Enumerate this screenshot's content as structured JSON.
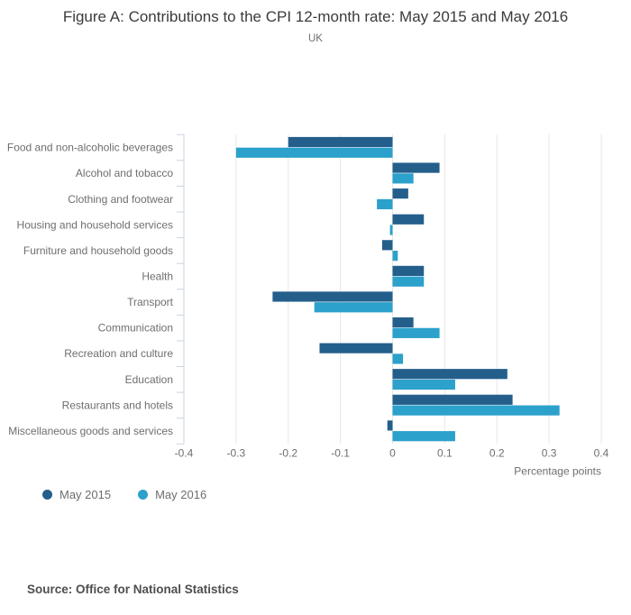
{
  "title": "Figure A: Contributions to the CPI 12-month rate: May 2015 and May 2016",
  "subtitle": "UK",
  "source": "Source: Office for National Statistics",
  "colors": {
    "series_2015": "#245F8C",
    "series_2016": "#2BA1CB",
    "gridline": "#e7e7e7",
    "axis": "#c9d3e2",
    "text_muted": "#6e6e6e",
    "title": "#3b3b3b",
    "source_text": "#4e4e4e"
  },
  "chart_data": {
    "type": "bar",
    "orientation": "horizontal",
    "title": "Figure A: Contributions to the CPI 12-month rate: May 2015 and May 2016",
    "subtitle": "UK",
    "categories": [
      "Food and non-alcoholic beverages",
      "Alcohol and tobacco",
      "Clothing and footwear",
      "Housing and household services",
      "Furniture and household goods",
      "Health",
      "Transport",
      "Communication",
      "Recreation and culture",
      "Education",
      "Restaurants and hotels",
      "Miscellaneous goods and services"
    ],
    "series": [
      {
        "name": "May 2015",
        "color": "#245F8C",
        "values": [
          -0.2,
          0.09,
          0.03,
          0.06,
          -0.02,
          0.06,
          -0.23,
          0.04,
          -0.14,
          0.22,
          0.23,
          -0.01
        ]
      },
      {
        "name": "May 2016",
        "color": "#2BA1CB",
        "values": [
          -0.3,
          0.04,
          -0.03,
          -0.005,
          0.01,
          0.06,
          -0.15,
          0.09,
          0.02,
          0.12,
          0.32,
          0.12
        ]
      }
    ],
    "xlabel": "Percentage points",
    "xlim": [
      -0.4,
      0.4
    ],
    "xticks": [
      {
        "value": -0.4,
        "label": "-0.4"
      },
      {
        "value": -0.3,
        "label": "-0.3"
      },
      {
        "value": -0.2,
        "label": "-0.2"
      },
      {
        "value": -0.1,
        "label": "-0.1"
      },
      {
        "value": 0,
        "label": "0"
      },
      {
        "value": 0.1,
        "label": "0.1"
      },
      {
        "value": 0.2,
        "label": "0.2"
      },
      {
        "value": 0.3,
        "label": "0.3"
      },
      {
        "value": 0.4,
        "label": "0.4"
      }
    ],
    "grid": true,
    "legend_position": "bottom-left"
  }
}
